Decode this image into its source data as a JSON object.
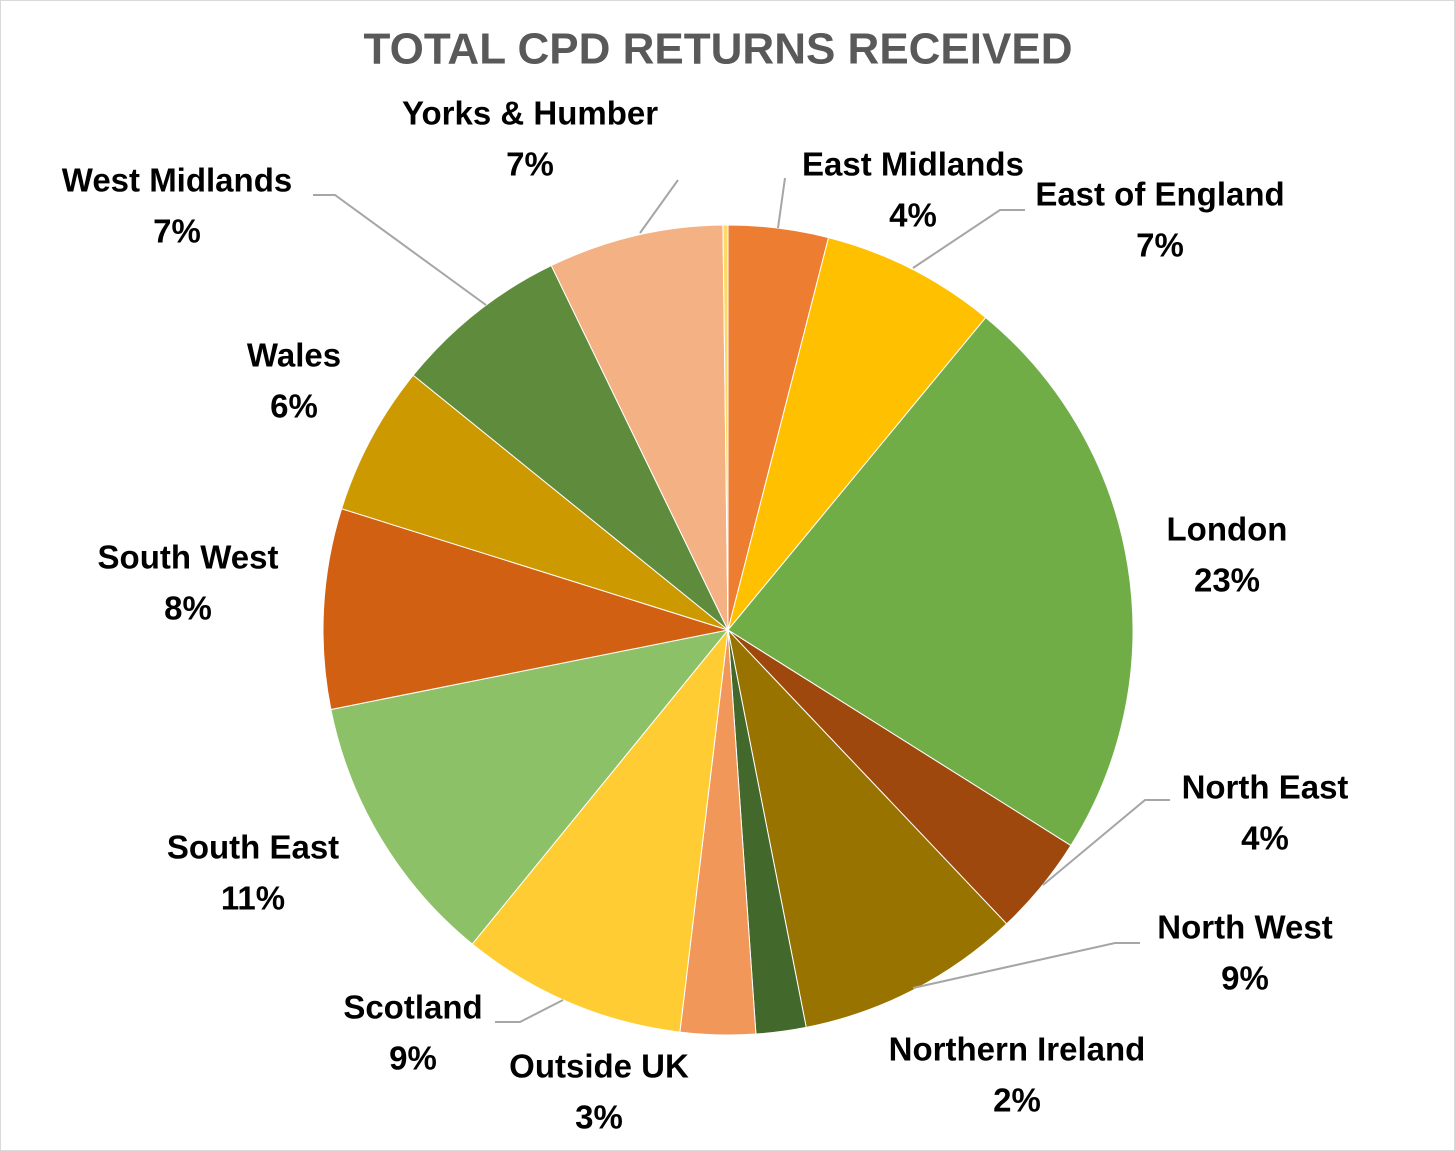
{
  "chart_data": {
    "type": "pie",
    "title": "TOTAL CPD RETURNS RECEIVED",
    "categories": [
      "East Midlands",
      "East of England",
      "London",
      "North East",
      "North West",
      "Northern Ireland",
      "Outside UK",
      "Scotland",
      "South East",
      "South West",
      "Wales",
      "West Midlands",
      "Yorks & Humber",
      null
    ],
    "values": [
      4,
      7,
      23,
      4,
      9,
      2,
      3,
      9,
      11,
      8,
      6,
      7,
      7,
      0.2
    ],
    "value_labels": [
      "4%",
      "7%",
      "23%",
      "4%",
      "9%",
      "2%",
      "3%",
      "9%",
      "11%",
      "8%",
      "6%",
      "7%",
      "7%",
      null
    ],
    "colors": [
      "#ed7d31",
      "#ffc000",
      "#70ad47",
      "#9e480e",
      "#997300",
      "#43682b",
      "#f1975a",
      "#ffcd33",
      "#8cc168",
      "#d26012",
      "#cc9a00",
      "#5e8b3c",
      "#f4b183",
      "#ffd966"
    ]
  }
}
